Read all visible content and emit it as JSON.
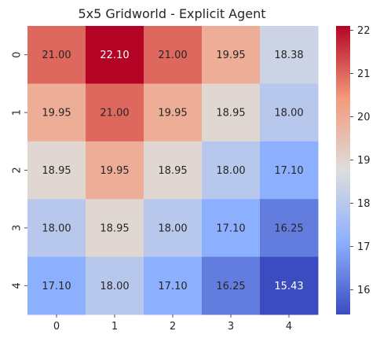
{
  "chart_data": {
    "type": "heatmap",
    "title": "5x5 Gridworld - Explicit Agent",
    "xlabel": "",
    "ylabel": "",
    "x_categories": [
      "0",
      "1",
      "2",
      "3",
      "4"
    ],
    "y_categories": [
      "0",
      "1",
      "2",
      "3",
      "4"
    ],
    "values": [
      [
        21.0,
        22.1,
        21.0,
        19.95,
        18.38
      ],
      [
        19.95,
        21.0,
        19.95,
        18.95,
        18.0
      ],
      [
        18.95,
        19.95,
        18.95,
        18.0,
        17.1
      ],
      [
        18.0,
        18.95,
        18.0,
        17.1,
        16.25
      ],
      [
        17.1,
        18.0,
        17.1,
        16.25,
        15.43
      ]
    ],
    "cell_labels": [
      [
        "21.00",
        "22.10",
        "21.00",
        "19.95",
        "18.38"
      ],
      [
        "19.95",
        "21.00",
        "19.95",
        "18.95",
        "18.00"
      ],
      [
        "18.95",
        "19.95",
        "18.95",
        "18.00",
        "17.10"
      ],
      [
        "18.00",
        "18.95",
        "18.00",
        "17.10",
        "16.25"
      ],
      [
        "17.10",
        "18.00",
        "17.10",
        "16.25",
        "15.43"
      ]
    ],
    "colormap": "coolwarm",
    "vmin": 15.43,
    "vmax": 22.1,
    "colorbar_ticks": [
      16,
      17,
      18,
      19,
      20,
      21,
      22
    ],
    "colorbar_tick_labels": [
      "16",
      "17",
      "18",
      "19",
      "20",
      "21",
      "22"
    ],
    "annotation_colors": {
      "dark": "#262626",
      "light": "#ffffff"
    }
  }
}
